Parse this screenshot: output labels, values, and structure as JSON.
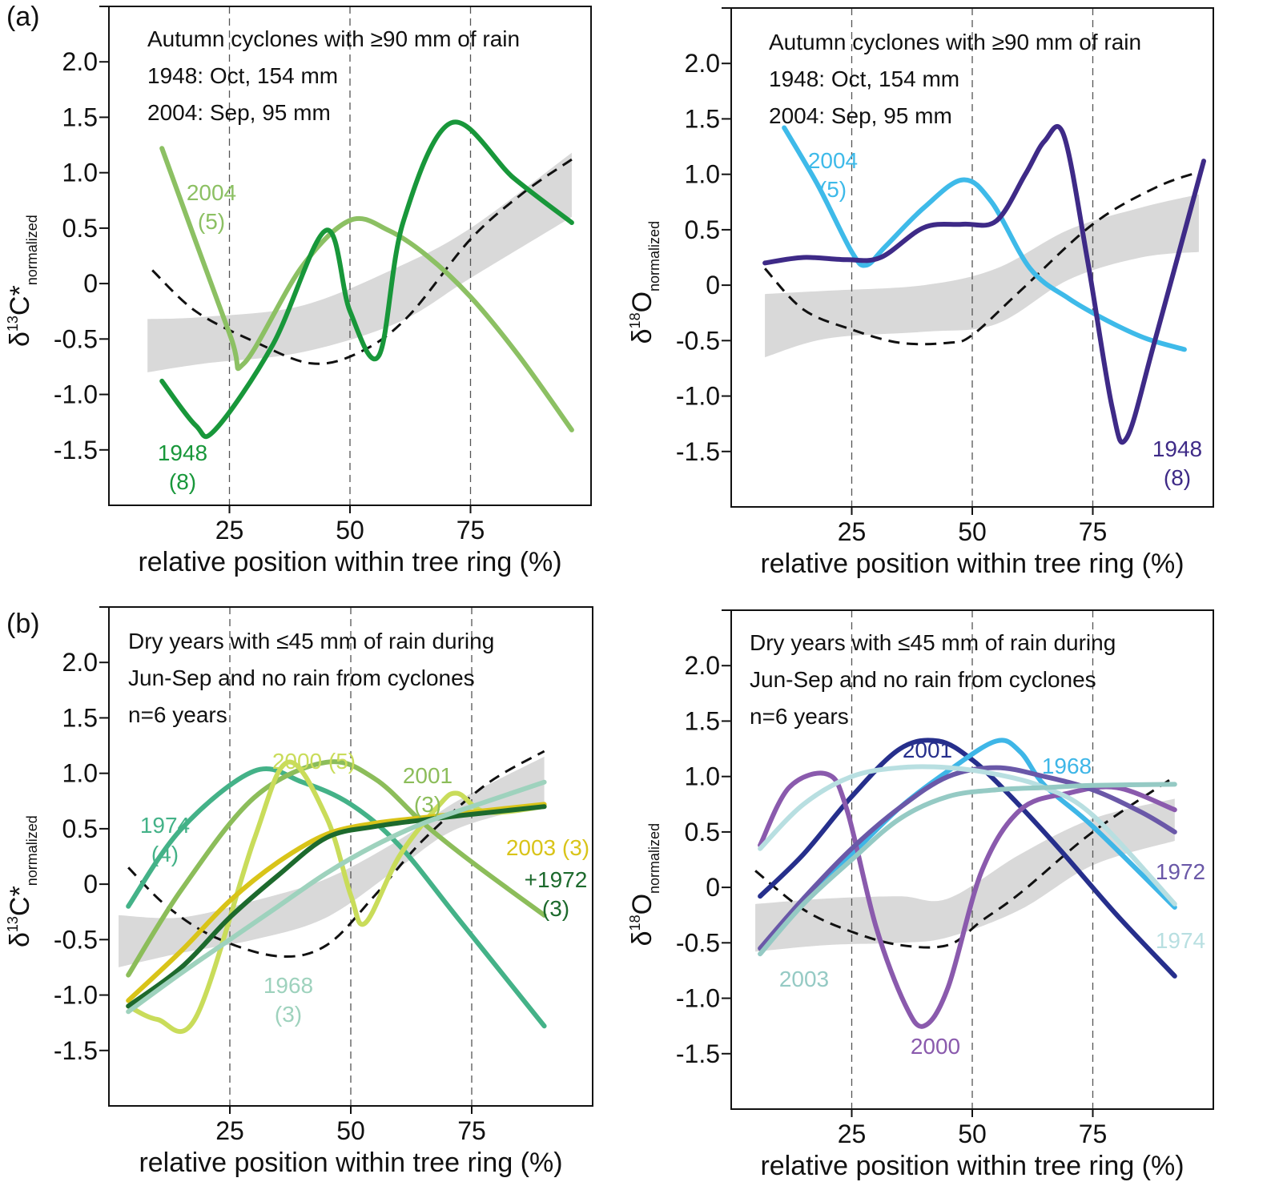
{
  "panel_labels": {
    "a": "(a)",
    "b": "(b)"
  },
  "chart_data": [
    {
      "id": "a_left",
      "type": "line",
      "title": "",
      "notes": [
        "Autumn cyclones with ≥90 mm of rain",
        "1948: Oct, 154 mm",
        "2004: Sep, 95 mm"
      ],
      "xlabel": "relative position within tree ring (%)",
      "ylabel": {
        "delta": "δ",
        "sup": "13",
        "main": "C*",
        "sub": "normalized"
      },
      "xlim": [
        0,
        100
      ],
      "ylim": [
        -2.0,
        2.5
      ],
      "xticks": [
        25,
        50,
        75
      ],
      "xtick_labels": [
        "25",
        "50",
        "75"
      ],
      "yticks": [
        -1.5,
        -1.0,
        -0.5,
        0,
        0.5,
        1.0,
        1.5,
        2.0
      ],
      "ytick_labels": [
        "-1.5",
        "-1.0",
        "-0.5",
        "0",
        "0.5",
        "1.0",
        "1.5",
        "2.0"
      ],
      "unlabeled_yticks": [
        2.5
      ],
      "vlines": [
        25,
        50,
        75
      ],
      "band": {
        "x": [
          8,
          20,
          40,
          60,
          75,
          96
        ],
        "upper": [
          -0.32,
          -0.3,
          -0.2,
          0.15,
          0.5,
          1.18
        ],
        "lower": [
          -0.8,
          -0.72,
          -0.62,
          -0.35,
          0.05,
          0.6
        ]
      },
      "mean_curve": {
        "x": [
          9,
          18,
          30,
          42,
          52,
          62,
          75,
          86,
          96
        ],
        "y": [
          0.12,
          -0.25,
          -0.52,
          -0.72,
          -0.62,
          -0.3,
          0.4,
          0.82,
          1.12
        ]
      },
      "series": [
        {
          "name": "2004",
          "label": [
            "2004",
            "(5)"
          ],
          "color": "#8cc063",
          "x": [
            11,
            25,
            28,
            40,
            50,
            58,
            66,
            75,
            85,
            96
          ],
          "y": [
            1.22,
            -0.45,
            -0.72,
            0.15,
            0.57,
            0.48,
            0.25,
            -0.12,
            -0.65,
            -1.32
          ]
        },
        {
          "name": "1948",
          "label": [
            "1948",
            "(8)"
          ],
          "color": "#18973a",
          "x": [
            11,
            18,
            22,
            34,
            45,
            50,
            56,
            61,
            71,
            84,
            96
          ],
          "y": [
            -0.88,
            -1.28,
            -1.32,
            -0.55,
            0.48,
            -0.25,
            -0.65,
            0.55,
            1.45,
            0.95,
            0.55
          ]
        }
      ]
    },
    {
      "id": "a_right",
      "type": "line",
      "title": "",
      "notes": [
        "Autumn cyclones with ≥90 mm of rain",
        "1948: Oct, 154 mm",
        "2004: Sep, 95 mm"
      ],
      "xlabel": "relative position within tree ring (%)",
      "ylabel": {
        "delta": "δ",
        "sup": "18",
        "main": "O",
        "sub": "normalized"
      },
      "xlim": [
        0,
        100
      ],
      "ylim": [
        -2.0,
        2.5
      ],
      "xticks": [
        25,
        50,
        75
      ],
      "xtick_labels": [
        "25",
        "50",
        "75"
      ],
      "yticks": [
        -1.5,
        -1.0,
        -0.5,
        0,
        0.5,
        1.0,
        1.5,
        2.0
      ],
      "ytick_labels": [
        "-1.5",
        "-1.0",
        "-0.5",
        "0",
        "0.5",
        "1.0",
        "1.5",
        "2.0"
      ],
      "unlabeled_yticks": [
        2.5
      ],
      "vlines": [
        25,
        50,
        75
      ],
      "band": {
        "x": [
          7,
          20,
          40,
          55,
          70,
          85,
          97
        ],
        "upper": [
          -0.08,
          -0.05,
          0.0,
          0.15,
          0.5,
          0.7,
          0.82
        ],
        "lower": [
          -0.65,
          -0.48,
          -0.42,
          -0.35,
          0.05,
          0.25,
          0.3
        ]
      },
      "mean_curve": {
        "x": [
          7,
          15,
          25,
          35,
          45,
          50,
          60,
          75,
          88,
          97
        ],
        "y": [
          0.15,
          -0.22,
          -0.4,
          -0.52,
          -0.52,
          -0.45,
          -0.05,
          0.55,
          0.88,
          1.02
        ]
      },
      "series": [
        {
          "name": "2004",
          "label": [
            "2004",
            "(5)"
          ],
          "color": "#3ebae9",
          "x": [
            11,
            18,
            25,
            28,
            32,
            40,
            48,
            54,
            62,
            70,
            78,
            86,
            94
          ],
          "y": [
            1.42,
            0.9,
            0.3,
            0.18,
            0.35,
            0.7,
            0.95,
            0.75,
            0.15,
            -0.12,
            -0.32,
            -0.48,
            -0.58
          ]
        },
        {
          "name": "1948",
          "label": [
            "1948",
            "(8)"
          ],
          "color": "#3e2a87",
          "x": [
            7,
            15,
            24,
            31,
            40,
            48,
            55,
            61,
            65,
            69,
            74,
            79,
            82,
            88,
            98
          ],
          "y": [
            0.2,
            0.25,
            0.23,
            0.25,
            0.52,
            0.55,
            0.58,
            1.0,
            1.3,
            1.35,
            0.2,
            -1.1,
            -1.38,
            -0.48,
            1.12
          ]
        }
      ]
    },
    {
      "id": "b_left",
      "type": "line",
      "title": "",
      "notes": [
        "Dry years with ≤45 mm of rain during",
        "Jun-Sep and no rain from cyclones",
        "n=6 years"
      ],
      "xlabel": "relative position within tree ring (%)",
      "ylabel": {
        "delta": "δ",
        "sup": "13",
        "main": "C*",
        "sub": "normalized"
      },
      "xlim": [
        0,
        100
      ],
      "ylim": [
        -2.0,
        2.5
      ],
      "xticks": [
        25,
        50,
        75
      ],
      "xtick_labels": [
        "25",
        "50",
        "75"
      ],
      "yticks": [
        -1.5,
        -1.0,
        -0.5,
        0,
        0.5,
        1.0,
        1.5,
        2.0
      ],
      "ytick_labels": [
        "-1.5",
        "-1.0",
        "-0.5",
        "0",
        "0.5",
        "1.0",
        "1.5",
        "2.0"
      ],
      "unlabeled_yticks": [
        2.5
      ],
      "vlines": [
        25,
        50,
        75
      ],
      "band": {
        "x": [
          2,
          15,
          30,
          45,
          60,
          72,
          90
        ],
        "upper": [
          -0.28,
          -0.3,
          -0.15,
          0.05,
          0.4,
          0.75,
          1.15
        ],
        "lower": [
          -0.75,
          -0.62,
          -0.5,
          -0.3,
          0.15,
          0.5,
          0.72
        ]
      },
      "mean_curve": {
        "x": [
          4,
          12,
          22,
          35,
          45,
          55,
          65,
          78,
          90
        ],
        "y": [
          0.15,
          -0.2,
          -0.48,
          -0.65,
          -0.55,
          -0.1,
          0.4,
          0.9,
          1.2
        ]
      },
      "series": [
        {
          "name": "1974",
          "label": [
            "1974",
            "(4)"
          ],
          "color": "#44b288",
          "x": [
            4,
            15,
            30,
            40,
            50,
            60,
            72,
            90
          ],
          "y": [
            -0.2,
            0.5,
            1.02,
            0.92,
            0.72,
            0.35,
            -0.3,
            -1.28
          ]
        },
        {
          "name": "2001",
          "label": [
            "2001",
            "(3)"
          ],
          "color": "#8cbd5a",
          "x": [
            4,
            15,
            30,
            45,
            55,
            65,
            75,
            90
          ],
          "y": [
            -0.82,
            -0.05,
            0.78,
            1.1,
            0.95,
            0.55,
            0.2,
            -0.28
          ]
        },
        {
          "name": "2000",
          "label": [
            "2000 (5)"
          ],
          "color": "#c9dc5a",
          "x": [
            4,
            10,
            18,
            30,
            37,
            45,
            50,
            53,
            60,
            68,
            72,
            78,
            90
          ],
          "y": [
            -1.1,
            -1.22,
            -1.2,
            0.4,
            1.1,
            0.6,
            -0.1,
            -0.35,
            0.25,
            0.7,
            0.82,
            0.65,
            0.7
          ]
        },
        {
          "name": "2003",
          "label": [
            "2003 (3)"
          ],
          "color": "#d9c419",
          "x": [
            4,
            15,
            25,
            35,
            45,
            55,
            65,
            75,
            90
          ],
          "y": [
            -1.05,
            -0.6,
            -0.15,
            0.2,
            0.45,
            0.55,
            0.6,
            0.65,
            0.72
          ]
        },
        {
          "name": "1972",
          "label": [
            "+1972",
            "(3)"
          ],
          "color": "#1d6a2d",
          "x": [
            4,
            15,
            25,
            35,
            45,
            55,
            65,
            75,
            90
          ],
          "y": [
            -1.1,
            -0.75,
            -0.3,
            0.08,
            0.42,
            0.52,
            0.58,
            0.63,
            0.7
          ]
        },
        {
          "name": "1968",
          "label": [
            "1968",
            "(3)"
          ],
          "color": "#9ed2bd",
          "x": [
            4,
            15,
            25,
            35,
            45,
            55,
            65,
            75,
            90
          ],
          "y": [
            -1.15,
            -0.8,
            -0.5,
            -0.2,
            0.1,
            0.35,
            0.55,
            0.7,
            0.92
          ]
        }
      ]
    },
    {
      "id": "b_right",
      "type": "line",
      "title": "",
      "notes": [
        "Dry years with ≤45 mm of rain during",
        "Jun-Sep and no rain from cyclones",
        "n=6 years"
      ],
      "xlabel": "relative position within tree ring (%)",
      "ylabel": {
        "delta": "δ",
        "sup": "18",
        "main": "O",
        "sub": "normalized"
      },
      "xlim": [
        0,
        100
      ],
      "ylim": [
        -2.0,
        2.5
      ],
      "xticks": [
        25,
        50,
        75
      ],
      "xtick_labels": [
        "25",
        "50",
        "75"
      ],
      "yticks": [
        -1.5,
        -1.0,
        -0.5,
        0,
        0.5,
        1.0,
        1.5,
        2.0
      ],
      "ytick_labels": [
        "-1.5",
        "-1.0",
        "-0.5",
        "0",
        "0.5",
        "1.0",
        "1.5",
        "2.0"
      ],
      "unlabeled_yticks": [
        2.5
      ],
      "vlines": [
        25,
        50,
        75
      ],
      "band": {
        "x": [
          5,
          20,
          35,
          45,
          60,
          75,
          92
        ],
        "upper": [
          -0.15,
          -0.1,
          -0.08,
          -0.1,
          0.3,
          0.62,
          0.8
        ],
        "lower": [
          -0.58,
          -0.52,
          -0.5,
          -0.45,
          -0.2,
          0.2,
          0.42
        ]
      },
      "mean_curve": {
        "x": [
          5,
          15,
          25,
          35,
          45,
          52,
          60,
          75,
          92
        ],
        "y": [
          0.15,
          -0.2,
          -0.4,
          -0.52,
          -0.52,
          -0.3,
          -0.05,
          0.5,
          1.0
        ]
      },
      "series": [
        {
          "name": "2001",
          "label": [
            "2001"
          ],
          "color": "#262f8c",
          "x": [
            6,
            15,
            25,
            35,
            43,
            50,
            58,
            68,
            80,
            92
          ],
          "y": [
            -0.08,
            0.3,
            0.82,
            1.25,
            1.32,
            1.15,
            0.82,
            0.35,
            -0.25,
            -0.8
          ]
        },
        {
          "name": "1968",
          "label": [
            "1968"
          ],
          "color": "#3eb6e7",
          "x": [
            15,
            25,
            35,
            45,
            55,
            60,
            65,
            75,
            92
          ],
          "y": [
            -0.1,
            0.3,
            0.72,
            1.05,
            1.32,
            1.22,
            0.92,
            0.55,
            -0.18
          ]
        },
        {
          "name": "2000",
          "label": [
            "2000"
          ],
          "color": "#8a5aad",
          "x": [
            6,
            12,
            20,
            24,
            30,
            36,
            40,
            45,
            52,
            60,
            70,
            80,
            92
          ],
          "y": [
            0.38,
            0.9,
            1.02,
            0.7,
            -0.35,
            -1.05,
            -1.25,
            -0.9,
            0.15,
            0.7,
            0.85,
            0.9,
            0.7
          ]
        },
        {
          "name": "1972",
          "label": [
            "1972"
          ],
          "color": "#6a58a8",
          "x": [
            6,
            15,
            25,
            35,
            45,
            55,
            65,
            75,
            85,
            92
          ],
          "y": [
            -0.55,
            -0.1,
            0.35,
            0.72,
            1.0,
            1.08,
            1.0,
            0.88,
            0.68,
            0.5
          ]
        },
        {
          "name": "1974",
          "label": [
            "1974"
          ],
          "color": "#b8dfe1",
          "x": [
            6,
            15,
            25,
            35,
            45,
            55,
            65,
            75,
            92
          ],
          "y": [
            0.35,
            0.75,
            1.0,
            1.08,
            1.08,
            1.02,
            0.9,
            0.65,
            -0.15
          ]
        },
        {
          "name": "2003",
          "label": [
            "2003"
          ],
          "color": "#95cac4",
          "x": [
            6,
            15,
            25,
            35,
            45,
            55,
            65,
            75,
            92
          ],
          "y": [
            -0.6,
            -0.15,
            0.25,
            0.62,
            0.82,
            0.88,
            0.9,
            0.92,
            0.93
          ]
        }
      ]
    }
  ]
}
